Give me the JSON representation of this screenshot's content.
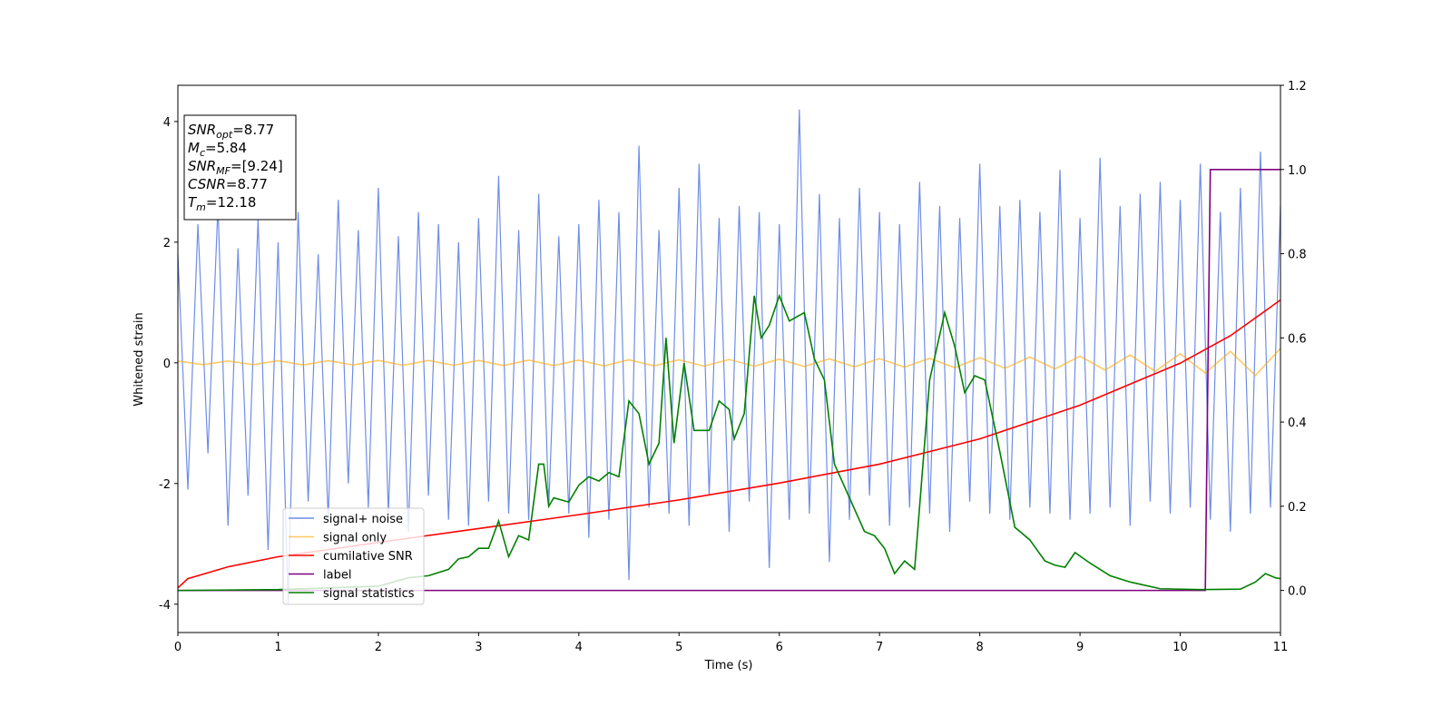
{
  "chart_data": {
    "type": "line",
    "xlabel": "Time (s)",
    "ylabel": "Whitened strain",
    "xlim": [
      0,
      11
    ],
    "xticks": [
      0,
      1,
      2,
      3,
      4,
      5,
      6,
      7,
      8,
      9,
      10,
      11
    ],
    "ylim": [
      -4.47,
      4.6
    ],
    "yticks": [
      -4,
      -2,
      0,
      2,
      4
    ],
    "y2lim": [
      -0.1,
      1.2
    ],
    "y2ticks": [
      {
        "value": 0,
        "label": "0.0"
      },
      {
        "value": 0.2,
        "label": "0.2"
      },
      {
        "value": 0.4,
        "label": "0.4"
      },
      {
        "value": 0.6,
        "label": "0.6"
      },
      {
        "value": 0.8,
        "label": "0.8"
      },
      {
        "value": 1,
        "label": "1.0"
      },
      {
        "value": 1.2,
        "label": "1.2"
      }
    ],
    "legend": "lower left",
    "annotations": [
      {
        "name": "SNR",
        "sub": "opt",
        "text": "=8.77"
      },
      {
        "name": "M",
        "sub": "c",
        "text": "=5.84"
      },
      {
        "name": "SNR",
        "sub": "MF",
        "text": "=[9.24]"
      },
      {
        "name": "CSNR",
        "text": "=8.77"
      },
      {
        "name": "T",
        "sub": "m",
        "text": "=12.18"
      }
    ],
    "series": [
      {
        "name": "signal+ noise",
        "color": "#6f8de6",
        "x": [
          0,
          0.1,
          0.2,
          0.3,
          0.4,
          0.5,
          0.6,
          0.7,
          0.8,
          0.9,
          1,
          1.1,
          1.2,
          1.3,
          1.4,
          1.5,
          1.6,
          1.7,
          1.8,
          1.9,
          2,
          2.1,
          2.2,
          2.3,
          2.4,
          2.5,
          2.6,
          2.7,
          2.8,
          2.9,
          3,
          3.1,
          3.2,
          3.3,
          3.4,
          3.5,
          3.6,
          3.7,
          3.8,
          3.9,
          4,
          4.1,
          4.2,
          4.3,
          4.4,
          4.5,
          4.6,
          4.7,
          4.8,
          4.9,
          5,
          5.1,
          5.2,
          5.3,
          5.4,
          5.5,
          5.6,
          5.7,
          5.8,
          5.9,
          6,
          6.1,
          6.2,
          6.3,
          6.4,
          6.5,
          6.6,
          6.7,
          6.8,
          6.9,
          7,
          7.1,
          7.2,
          7.3,
          7.4,
          7.5,
          7.6,
          7.7,
          7.8,
          7.9,
          8,
          8.1,
          8.2,
          8.3,
          8.4,
          8.5,
          8.6,
          8.7,
          8.8,
          8.9,
          9,
          9.1,
          9.2,
          9.3,
          9.4,
          9.5,
          9.6,
          9.7,
          9.8,
          9.9,
          10,
          10.1,
          10.2,
          10.3,
          10.4,
          10.5,
          10.6,
          10.7,
          10.8,
          10.9,
          11
        ],
        "values": [
          1.8,
          -2.1,
          2.3,
          -1.5,
          2.6,
          -2.7,
          1.9,
          -2.2,
          2.4,
          -3.1,
          2.0,
          -4.0,
          2.5,
          -2.3,
          1.8,
          -2.6,
          2.7,
          -2.0,
          2.2,
          -2.4,
          2.9,
          -2.5,
          2.1,
          -2.8,
          2.5,
          -2.2,
          2.3,
          -2.6,
          2.0,
          -2.7,
          2.4,
          -2.3,
          3.1,
          -2.5,
          2.2,
          -2.6,
          2.8,
          -2.4,
          2.1,
          -2.5,
          2.3,
          -2.9,
          2.7,
          -2.6,
          2.5,
          -3.6,
          3.6,
          -2.4,
          2.2,
          -2.5,
          2.9,
          -2.7,
          3.3,
          -2.2,
          2.4,
          -2.8,
          2.6,
          -2.3,
          2.5,
          -3.4,
          2.3,
          -2.6,
          4.2,
          -2.5,
          2.8,
          -3.3,
          2.4,
          -2.6,
          2.9,
          -2.2,
          2.5,
          -2.7,
          2.3,
          -2.4,
          3.0,
          -2.5,
          2.6,
          -2.8,
          2.4,
          -2.3,
          3.3,
          -2.5,
          2.6,
          -2.6,
          2.7,
          -2.4,
          2.5,
          -2.5,
          3.2,
          -2.6,
          2.4,
          -2.5,
          3.4,
          -2.4,
          2.6,
          -2.7,
          2.8,
          -2.3,
          3.0,
          -2.5,
          2.7,
          -2.4,
          3.3,
          -2.6,
          2.5,
          -2.8,
          2.9,
          -2.5,
          3.5,
          -2.4,
          2.6
        ]
      },
      {
        "name": "signal only",
        "color": "#ffa500",
        "x": [
          0,
          0.25,
          0.5,
          0.75,
          1,
          1.25,
          1.5,
          1.75,
          2,
          2.25,
          2.5,
          2.75,
          3,
          3.25,
          3.5,
          3.75,
          4,
          4.25,
          4.5,
          4.75,
          5,
          5.25,
          5.5,
          5.75,
          6,
          6.25,
          6.5,
          6.75,
          7,
          7.25,
          7.5,
          7.75,
          8,
          8.25,
          8.5,
          8.75,
          9,
          9.25,
          9.5,
          9.75,
          10,
          10.25,
          10.5,
          10.75,
          11
        ],
        "values": [
          0.03,
          -0.03,
          0.03,
          -0.03,
          0.035,
          -0.035,
          0.035,
          -0.035,
          0.04,
          -0.04,
          0.04,
          -0.04,
          0.04,
          -0.045,
          0.045,
          -0.045,
          0.045,
          -0.05,
          0.05,
          -0.05,
          0.05,
          -0.055,
          0.055,
          -0.055,
          0.06,
          -0.06,
          0.065,
          -0.065,
          0.07,
          -0.07,
          0.075,
          -0.08,
          0.085,
          -0.09,
          0.095,
          -0.1,
          0.11,
          -0.12,
          0.13,
          -0.14,
          0.15,
          -0.17,
          0.19,
          -0.21,
          0.24
        ]
      },
      {
        "name": "cumilative SNR",
        "color": "#ff0000",
        "axis": "y2",
        "x": [
          0,
          0.1,
          0.5,
          1,
          2,
          3,
          4,
          5,
          6,
          7,
          8,
          9,
          10,
          10.5,
          11
        ],
        "values": [
          0.006,
          0.028,
          0.056,
          0.08,
          0.114,
          0.147,
          0.18,
          0.215,
          0.255,
          0.3,
          0.36,
          0.44,
          0.54,
          0.605,
          0.69
        ]
      },
      {
        "name": "label",
        "color": "#800080",
        "axis": "y2",
        "x": [
          0,
          10.25,
          10.3,
          11
        ],
        "values": [
          0,
          0,
          1,
          1
        ]
      },
      {
        "name": "signal statistics",
        "color": "#008000",
        "axis": "y2",
        "x": [
          0,
          1,
          2,
          2.3,
          2.5,
          2.7,
          2.8,
          2.9,
          3.0,
          3.1,
          3.2,
          3.3,
          3.4,
          3.5,
          3.6,
          3.65,
          3.7,
          3.75,
          3.9,
          4.0,
          4.1,
          4.2,
          4.3,
          4.4,
          4.5,
          4.6,
          4.7,
          4.8,
          4.87,
          4.95,
          5.05,
          5.15,
          5.3,
          5.4,
          5.5,
          5.55,
          5.65,
          5.75,
          5.82,
          5.9,
          6.0,
          6.1,
          6.25,
          6.35,
          6.45,
          6.55,
          6.7,
          6.85,
          6.95,
          7.05,
          7.15,
          7.25,
          7.35,
          7.5,
          7.65,
          7.75,
          7.85,
          7.95,
          8.05,
          8.2,
          8.35,
          8.5,
          8.65,
          8.75,
          8.85,
          8.95,
          9.1,
          9.3,
          9.5,
          9.8,
          10.2,
          10.6,
          10.75,
          10.85,
          10.95,
          11
        ],
        "values": [
          0,
          0.002,
          0.01,
          0.03,
          0.035,
          0.05,
          0.075,
          0.08,
          0.1,
          0.1,
          0.165,
          0.08,
          0.13,
          0.12,
          0.3,
          0.3,
          0.2,
          0.22,
          0.21,
          0.25,
          0.27,
          0.26,
          0.28,
          0.27,
          0.45,
          0.42,
          0.3,
          0.35,
          0.6,
          0.35,
          0.54,
          0.38,
          0.38,
          0.45,
          0.43,
          0.36,
          0.42,
          0.7,
          0.6,
          0.63,
          0.7,
          0.64,
          0.66,
          0.55,
          0.5,
          0.3,
          0.22,
          0.14,
          0.13,
          0.1,
          0.04,
          0.07,
          0.05,
          0.5,
          0.66,
          0.58,
          0.47,
          0.51,
          0.5,
          0.33,
          0.15,
          0.12,
          0.07,
          0.06,
          0.055,
          0.09,
          0.065,
          0.035,
          0.02,
          0.004,
          0.002,
          0.003,
          0.02,
          0.04,
          0.03,
          0.028
        ]
      }
    ]
  }
}
